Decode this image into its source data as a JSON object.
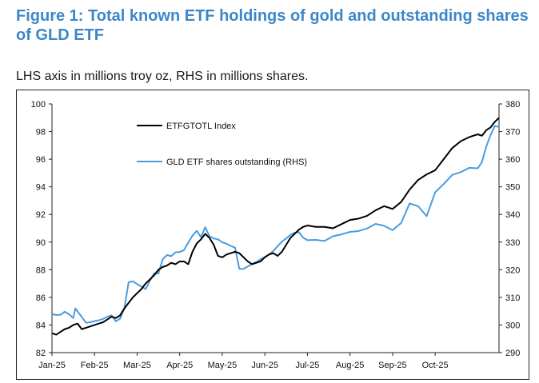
{
  "title": "Figure 1: Total known ETF holdings of gold and outstanding shares of GLD ETF",
  "subtitle": "LHS axis in millions troy oz, RHS in millions shares.",
  "chart_data": {
    "type": "line",
    "title": "",
    "xlabel": "",
    "ylabel_left": "",
    "ylabel_right": "",
    "x_ticks": [
      "Jan-25",
      "Feb-25",
      "Mar-25",
      "Apr-25",
      "May-25",
      "Jun-25",
      "Jul-25",
      "Aug-25",
      "Sep-25",
      "Oct-25"
    ],
    "ylim_left": [
      82,
      100
    ],
    "y_ticks_left": [
      82,
      84,
      86,
      88,
      90,
      92,
      94,
      96,
      98,
      100
    ],
    "ylim_right": [
      290,
      380
    ],
    "y_ticks_right": [
      290,
      300,
      310,
      320,
      330,
      340,
      350,
      360,
      370,
      380
    ],
    "legend": "top-left",
    "grid": false,
    "series": [
      {
        "name": "ETFGTOTL Index",
        "axis": "left",
        "color": "#000000",
        "points": [
          [
            0.0,
            83.4
          ],
          [
            0.1,
            83.3
          ],
          [
            0.2,
            83.5
          ],
          [
            0.3,
            83.7
          ],
          [
            0.4,
            83.8
          ],
          [
            0.5,
            84.0
          ],
          [
            0.6,
            84.1
          ],
          [
            0.7,
            83.7
          ],
          [
            0.8,
            83.8
          ],
          [
            0.9,
            83.9
          ],
          [
            1.0,
            84.0
          ],
          [
            1.1,
            84.1
          ],
          [
            1.2,
            84.2
          ],
          [
            1.3,
            84.4
          ],
          [
            1.4,
            84.6
          ],
          [
            1.5,
            84.5
          ],
          [
            1.6,
            84.7
          ],
          [
            1.7,
            85.2
          ],
          [
            1.8,
            85.6
          ],
          [
            1.9,
            86.0
          ],
          [
            2.0,
            86.3
          ],
          [
            2.1,
            86.6
          ],
          [
            2.2,
            87.0
          ],
          [
            2.3,
            87.3
          ],
          [
            2.4,
            87.6
          ],
          [
            2.5,
            88.0
          ],
          [
            2.6,
            88.2
          ],
          [
            2.7,
            88.3
          ],
          [
            2.8,
            88.5
          ],
          [
            2.9,
            88.4
          ],
          [
            3.0,
            88.6
          ],
          [
            3.1,
            88.6
          ],
          [
            3.2,
            88.4
          ],
          [
            3.3,
            89.3
          ],
          [
            3.4,
            89.9
          ],
          [
            3.5,
            90.2
          ],
          [
            3.6,
            90.6
          ],
          [
            3.7,
            90.3
          ],
          [
            3.8,
            89.8
          ],
          [
            3.9,
            89.0
          ],
          [
            4.0,
            88.9
          ],
          [
            4.1,
            89.1
          ],
          [
            4.2,
            89.2
          ],
          [
            4.3,
            89.3
          ],
          [
            4.4,
            89.2
          ],
          [
            4.5,
            88.9
          ],
          [
            4.6,
            88.6
          ],
          [
            4.7,
            88.4
          ],
          [
            4.8,
            88.5
          ],
          [
            4.9,
            88.6
          ],
          [
            5.0,
            88.9
          ],
          [
            5.1,
            89.1
          ],
          [
            5.2,
            89.2
          ],
          [
            5.3,
            89.0
          ],
          [
            5.4,
            89.3
          ],
          [
            5.5,
            89.8
          ],
          [
            5.6,
            90.3
          ],
          [
            5.7,
            90.6
          ],
          [
            5.8,
            90.9
          ],
          [
            5.9,
            91.1
          ],
          [
            6.0,
            91.2
          ],
          [
            6.2,
            91.1
          ],
          [
            6.4,
            91.1
          ],
          [
            6.6,
            91.0
          ],
          [
            6.8,
            91.3
          ],
          [
            7.0,
            91.6
          ],
          [
            7.2,
            91.7
          ],
          [
            7.4,
            91.9
          ],
          [
            7.6,
            92.3
          ],
          [
            7.8,
            92.6
          ],
          [
            8.0,
            92.4
          ],
          [
            8.2,
            92.9
          ],
          [
            8.4,
            93.8
          ],
          [
            8.6,
            94.5
          ],
          [
            8.8,
            94.9
          ],
          [
            9.0,
            95.2
          ],
          [
            9.2,
            96.0
          ],
          [
            9.4,
            96.8
          ],
          [
            9.6,
            97.3
          ],
          [
            9.8,
            97.6
          ],
          [
            10.0,
            97.8
          ],
          [
            10.1,
            97.7
          ],
          [
            10.2,
            98.1
          ],
          [
            10.3,
            98.3
          ],
          [
            10.4,
            98.7
          ],
          [
            10.5,
            99.0
          ]
        ]
      },
      {
        "name": "GLD ETF shares outstanding (RHS)",
        "axis": "right",
        "color": "#4a9be0",
        "points": [
          [
            0.0,
            304.0
          ],
          [
            0.1,
            303.6
          ],
          [
            0.2,
            303.7
          ],
          [
            0.3,
            304.8
          ],
          [
            0.4,
            303.9
          ],
          [
            0.5,
            302.5
          ],
          [
            0.55,
            306.0
          ],
          [
            0.6,
            304.9
          ],
          [
            0.7,
            302.9
          ],
          [
            0.8,
            300.8
          ],
          [
            0.9,
            301.0
          ],
          [
            1.0,
            301.4
          ],
          [
            1.1,
            301.7
          ],
          [
            1.2,
            302.2
          ],
          [
            1.3,
            303.0
          ],
          [
            1.4,
            303.5
          ],
          [
            1.5,
            301.3
          ],
          [
            1.6,
            302.3
          ],
          [
            1.7,
            306.0
          ],
          [
            1.8,
            315.5
          ],
          [
            1.9,
            315.8
          ],
          [
            2.0,
            314.8
          ],
          [
            2.1,
            313.9
          ],
          [
            2.2,
            313.0
          ],
          [
            2.3,
            316.0
          ],
          [
            2.4,
            318.7
          ],
          [
            2.5,
            318.6
          ],
          [
            2.6,
            323.8
          ],
          [
            2.7,
            325.3
          ],
          [
            2.8,
            324.9
          ],
          [
            2.9,
            326.3
          ],
          [
            3.0,
            326.4
          ],
          [
            3.1,
            327.1
          ],
          [
            3.2,
            329.8
          ],
          [
            3.3,
            332.3
          ],
          [
            3.4,
            334.1
          ],
          [
            3.5,
            331.8
          ],
          [
            3.6,
            335.4
          ],
          [
            3.7,
            332.1
          ],
          [
            3.8,
            331.3
          ],
          [
            3.9,
            331.0
          ],
          [
            4.0,
            329.9
          ],
          [
            4.1,
            329.4
          ],
          [
            4.2,
            328.6
          ],
          [
            4.3,
            328.0
          ],
          [
            4.4,
            320.3
          ],
          [
            4.5,
            320.3
          ],
          [
            4.6,
            321.2
          ],
          [
            4.7,
            322.1
          ],
          [
            4.8,
            322.8
          ],
          [
            4.9,
            323.8
          ],
          [
            5.0,
            324.6
          ],
          [
            5.1,
            325.6
          ],
          [
            5.2,
            326.8
          ],
          [
            5.3,
            328.5
          ],
          [
            5.4,
            330.2
          ],
          [
            5.5,
            331.3
          ],
          [
            5.6,
            332.6
          ],
          [
            5.7,
            333.4
          ],
          [
            5.8,
            333.6
          ],
          [
            5.9,
            331.6
          ],
          [
            6.0,
            330.7
          ],
          [
            6.2,
            330.8
          ],
          [
            6.4,
            330.4
          ],
          [
            6.6,
            332.1
          ],
          [
            6.8,
            332.8
          ],
          [
            7.0,
            333.7
          ],
          [
            7.2,
            334.0
          ],
          [
            7.4,
            334.9
          ],
          [
            7.6,
            336.6
          ],
          [
            7.8,
            335.9
          ],
          [
            8.0,
            334.3
          ],
          [
            8.2,
            336.9
          ],
          [
            8.4,
            344.0
          ],
          [
            8.6,
            343.0
          ],
          [
            8.8,
            339.4
          ],
          [
            9.0,
            348.0
          ],
          [
            9.2,
            351.0
          ],
          [
            9.4,
            354.3
          ],
          [
            9.6,
            355.3
          ],
          [
            9.8,
            356.9
          ],
          [
            10.0,
            356.7
          ],
          [
            10.1,
            359.0
          ],
          [
            10.2,
            364.6
          ],
          [
            10.3,
            368.7
          ],
          [
            10.4,
            372.0
          ],
          [
            10.5,
            371.7
          ]
        ]
      }
    ]
  }
}
